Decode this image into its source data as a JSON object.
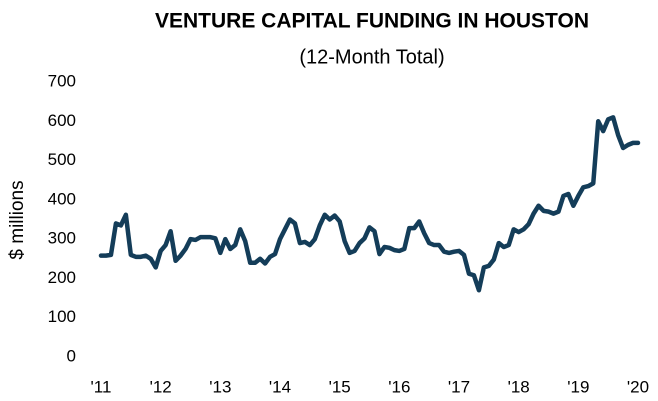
{
  "chart_data": {
    "type": "line",
    "title": "VENTURE CAPITAL FUNDING IN HOUSTON",
    "subtitle": "(12-Month Total)",
    "y_label": "$ millions",
    "categories": [
      "'11",
      null,
      null,
      null,
      null,
      null,
      null,
      null,
      null,
      null,
      null,
      null,
      "'12",
      null,
      null,
      null,
      null,
      null,
      null,
      null,
      null,
      null,
      null,
      null,
      "'13",
      null,
      null,
      null,
      null,
      null,
      null,
      null,
      null,
      null,
      null,
      null,
      "'14",
      null,
      null,
      null,
      null,
      null,
      null,
      null,
      null,
      null,
      null,
      null,
      "'15",
      null,
      null,
      null,
      null,
      null,
      null,
      null,
      null,
      null,
      null,
      null,
      "'16",
      null,
      null,
      null,
      null,
      null,
      null,
      null,
      null,
      null,
      null,
      null,
      "'17",
      null,
      null,
      null,
      null,
      null,
      null,
      null,
      null,
      null,
      null,
      null,
      "'18",
      null,
      null,
      null,
      null,
      null,
      null,
      null,
      null,
      null,
      null,
      null,
      "'19",
      null,
      null,
      null,
      null,
      null,
      null,
      null,
      null,
      null,
      null,
      null,
      "'20"
    ],
    "series": [
      {
        "name": "Venture capital funding",
        "color": "#143d59",
        "values": [
          258,
          258,
          260,
          340,
          335,
          362,
          260,
          255,
          255,
          258,
          250,
          228,
          270,
          285,
          320,
          245,
          258,
          275,
          300,
          298,
          305,
          305,
          305,
          302,
          265,
          300,
          275,
          285,
          325,
          295,
          240,
          240,
          250,
          238,
          255,
          262,
          300,
          325,
          350,
          340,
          290,
          293,
          285,
          300,
          335,
          362,
          350,
          360,
          345,
          295,
          265,
          270,
          290,
          302,
          330,
          320,
          262,
          280,
          278,
          272,
          270,
          275,
          328,
          328,
          345,
          315,
          290,
          285,
          285,
          268,
          265,
          268,
          270,
          260,
          212,
          208,
          170,
          228,
          232,
          248,
          290,
          280,
          285,
          325,
          318,
          325,
          338,
          365,
          385,
          372,
          370,
          365,
          370,
          410,
          415,
          385,
          410,
          432,
          435,
          442,
          600,
          575,
          605,
          610,
          565,
          532,
          540,
          545,
          545
        ]
      }
    ],
    "ylim": [
      0,
      700
    ],
    "yticks": [
      0,
      100,
      200,
      300,
      400,
      500,
      600,
      700
    ],
    "grid": false
  }
}
